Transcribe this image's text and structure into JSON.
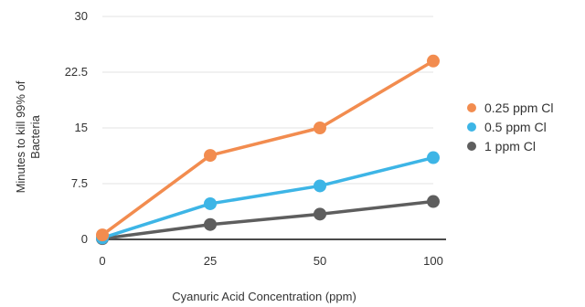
{
  "chart_data": {
    "type": "line",
    "title": "",
    "xlabel": "Cyanuric Acid Concentration (ppm)",
    "ylabel_lines": [
      "Minutes to kill 99% of",
      "Bacteria"
    ],
    "categories": [
      "0",
      "25",
      "50",
      "100"
    ],
    "y_ticks": [
      "0",
      "7.5",
      "15",
      "22.5",
      "30"
    ],
    "ylim": [
      0,
      30
    ],
    "grid": true,
    "legend_position": "right",
    "series": [
      {
        "name": "0.25 ppm Cl",
        "color": "#F28C4F",
        "values": [
          0.6,
          11.3,
          15.0,
          24.0
        ]
      },
      {
        "name": "0.5 ppm Cl",
        "color": "#3DB5E6",
        "values": [
          0.2,
          4.8,
          7.2,
          11.0
        ]
      },
      {
        "name": "1 ppm Cl",
        "color": "#5E5E5E",
        "values": [
          0.1,
          2.0,
          3.4,
          5.1
        ]
      }
    ]
  }
}
